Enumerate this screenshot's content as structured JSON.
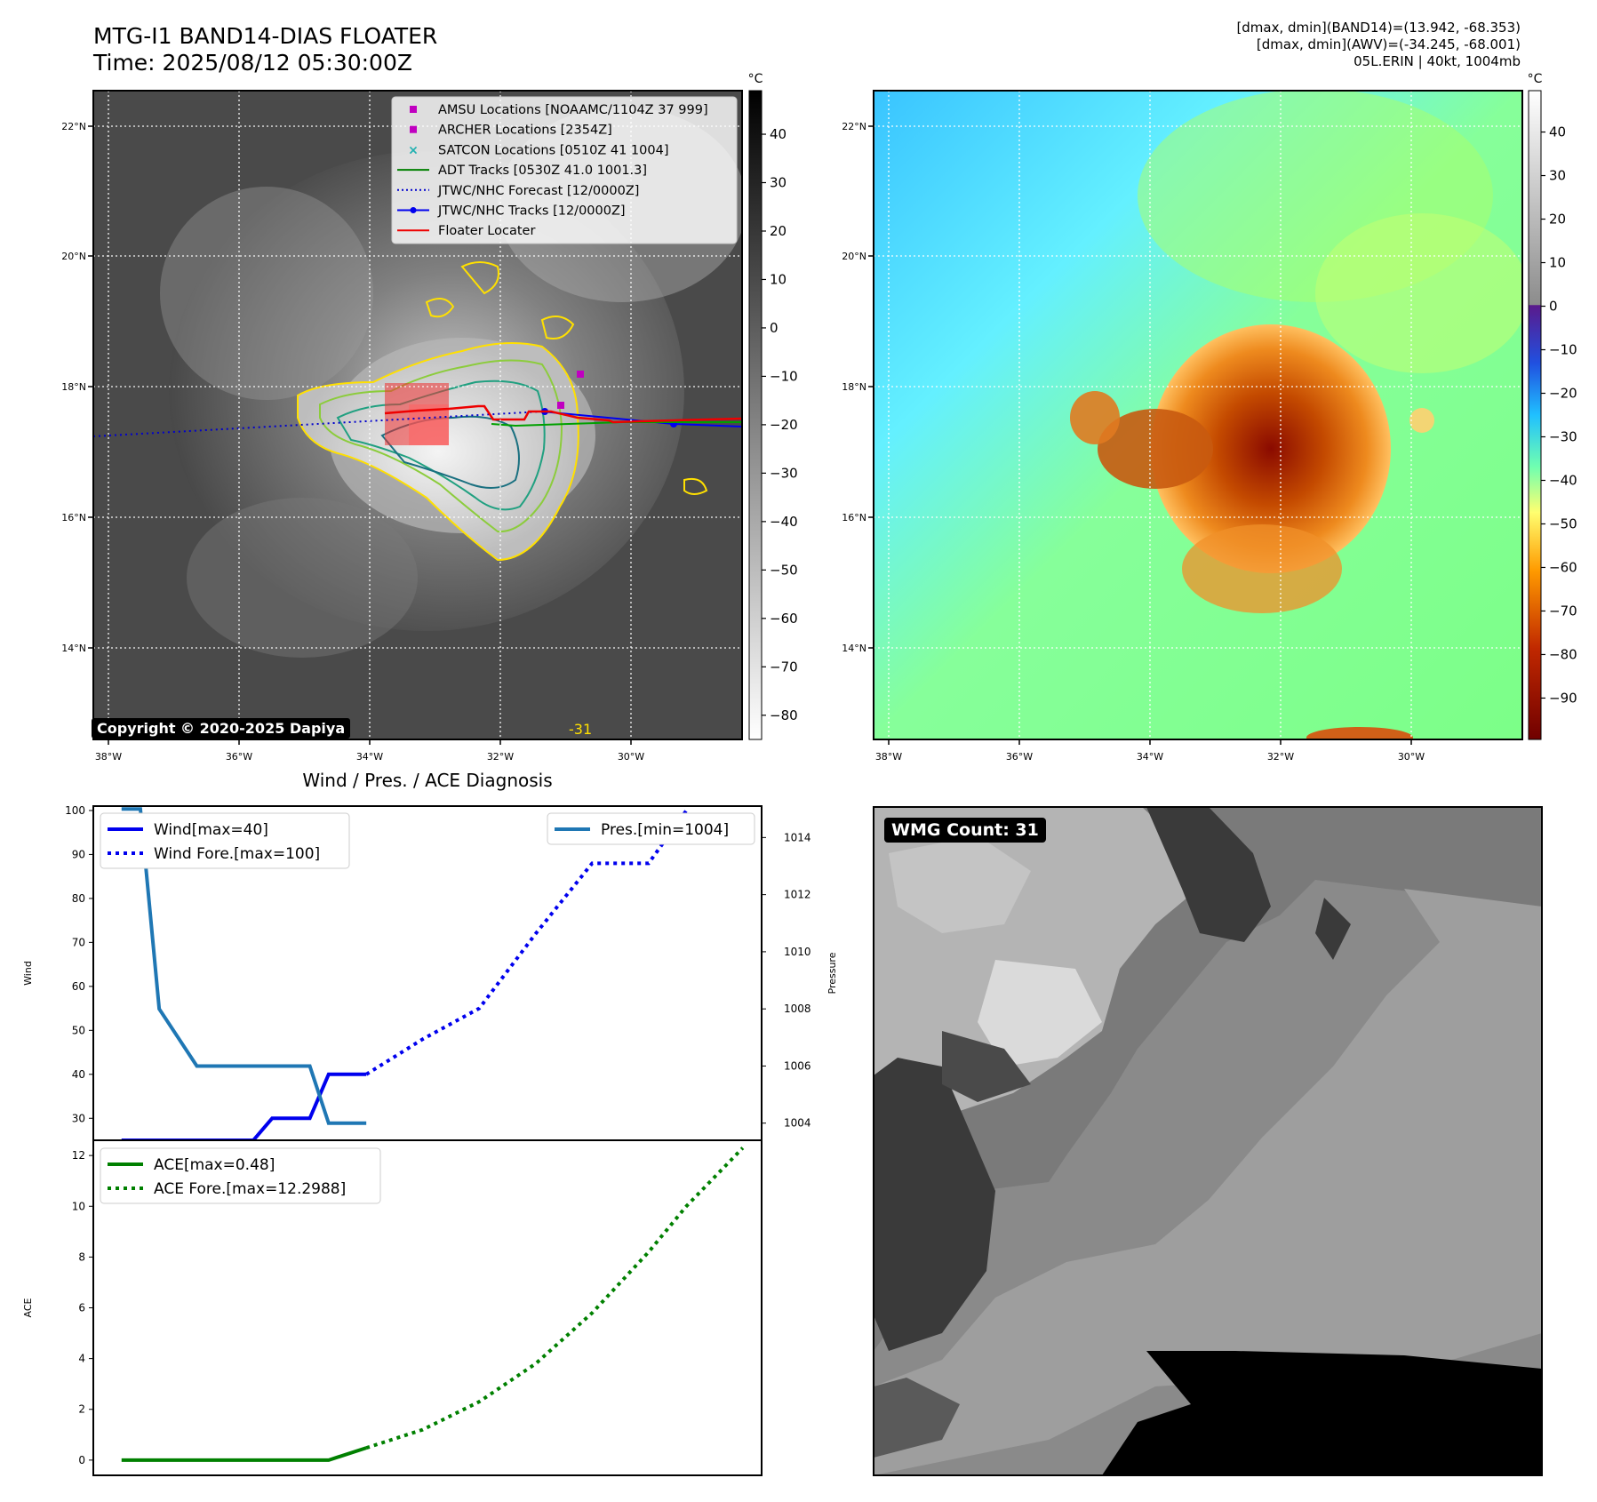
{
  "header": {
    "title_line1": "MTG-I1 BAND14-DIAS FLOATER",
    "title_line2": "Time: 2025/08/12 05:30:00Z",
    "info_line1": "[dmax, dmin](BAND14)=(13.942, -68.353)",
    "info_line2": "[dmax, dmin](AWV)=(-34.245, -68.001)",
    "info_line3": "05L.ERIN | 40kt, 1004mb"
  },
  "copyright": "Copyright © 2020-2025 Dapiya",
  "wmg_count": "WMG Count: 31",
  "map": {
    "lon_ticks": [
      "38°W",
      "36°W",
      "34°W",
      "32°W",
      "30°W"
    ],
    "lat_ticks": [
      "22°N",
      "20°N",
      "18°N",
      "16°N",
      "14°N"
    ],
    "contour_label": "-31",
    "colorbar_unit": "°C",
    "colorbar_left_ticks": [
      "40",
      "30",
      "20",
      "10",
      "0",
      "−10",
      "−20",
      "−30",
      "−40",
      "−50",
      "−60",
      "−70",
      "−80"
    ],
    "colorbar_right_ticks": [
      "40",
      "30",
      "20",
      "10",
      "0",
      "−10",
      "−20",
      "−30",
      "−40",
      "−50",
      "−60",
      "−70",
      "−80",
      "−90"
    ],
    "legend": [
      {
        "label": "AMSU Locations [NOAAMC/1104Z 37 999]",
        "kind": "square",
        "color": "#c000c0"
      },
      {
        "label": "ARCHER Locations [2354Z]",
        "kind": "square",
        "color": "#c000c0"
      },
      {
        "label": "SATCON Locations [0510Z 41 1004]",
        "kind": "x",
        "color": "#20b0b0"
      },
      {
        "label": "ADT Tracks [0530Z 41.0 1001.3]",
        "kind": "line",
        "color": "#008000"
      },
      {
        "label": "JTWC/NHC Forecast [12/0000Z]",
        "kind": "dotted",
        "color": "#0000cc"
      },
      {
        "label": "JTWC/NHC Tracks [12/0000Z]",
        "kind": "line-dot",
        "color": "#0000ee"
      },
      {
        "label": "Floater Locater",
        "kind": "line",
        "color": "#ee0000"
      }
    ]
  },
  "chart_data": [
    {
      "type": "line",
      "title": "Wind / Pres. / ACE Diagnosis",
      "ylabel": "Wind",
      "y2label": "Pressure",
      "ylim": [
        25,
        101
      ],
      "y2lim": [
        1003.4,
        1015.1
      ],
      "yticks": [
        30,
        40,
        50,
        60,
        70,
        80,
        90,
        100
      ],
      "y2ticks": [
        1004,
        1006,
        1008,
        1010,
        1012,
        1014
      ],
      "series": [
        {
          "name": "Wind[max=40]",
          "axis": "left",
          "style": "solid",
          "color": "#0000ee",
          "x": [
            0,
            1,
            2,
            3,
            4,
            5,
            6,
            7,
            8,
            9,
            10,
            11,
            12,
            13
          ],
          "values": [
            25,
            25,
            25,
            25,
            25,
            25,
            25,
            25,
            30,
            30,
            30,
            40,
            40,
            40
          ]
        },
        {
          "name": "Wind Fore.[max=100]",
          "axis": "left",
          "style": "dotted",
          "color": "#0000ee",
          "x": [
            13,
            16,
            19,
            22,
            25,
            28,
            30
          ],
          "values": [
            40,
            48,
            55,
            72,
            88,
            88,
            100
          ]
        },
        {
          "name": "Pres.[min=1004]",
          "axis": "right",
          "style": "solid",
          "color": "#1f77b4",
          "x": [
            0,
            1,
            2,
            3,
            4,
            5,
            6,
            7,
            8,
            9,
            10,
            11,
            12,
            13
          ],
          "values": [
            1015,
            1015,
            1008,
            1007,
            1006,
            1006,
            1006,
            1006,
            1006,
            1006,
            1006,
            1004,
            1004,
            1004
          ]
        }
      ]
    },
    {
      "type": "line",
      "ylabel": "ACE",
      "ylim": [
        -0.6,
        12.6
      ],
      "yticks": [
        0,
        2,
        4,
        6,
        8,
        10,
        12
      ],
      "series": [
        {
          "name": "ACE[max=0.48]",
          "style": "solid",
          "color": "#008000",
          "x": [
            0,
            11,
            13
          ],
          "values": [
            0,
            0,
            0.48
          ]
        },
        {
          "name": "ACE Fore.[max=12.2988]",
          "style": "dotted",
          "color": "#008000",
          "x": [
            13,
            16,
            19,
            22,
            25,
            28,
            30,
            33
          ],
          "values": [
            0.48,
            1.2,
            2.3,
            3.8,
            5.8,
            8.2,
            10.0,
            12.3
          ]
        }
      ]
    }
  ]
}
